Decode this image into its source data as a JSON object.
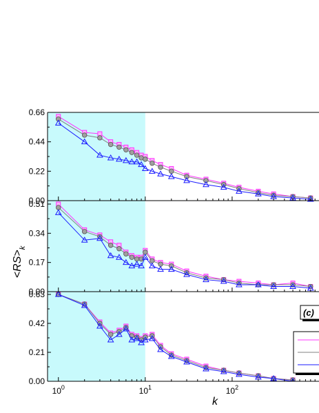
{
  "chart_data": {
    "type": "line",
    "xlabel": "k",
    "ylabel_main": "<RS>",
    "ylabel_sub": "k",
    "x_scale": "log",
    "xlim": [
      0.75,
      1000
    ],
    "x_tick_base": "10",
    "x_ticks": [
      {
        "value": 1,
        "exp": "0"
      },
      {
        "value": 10,
        "exp": "1"
      },
      {
        "value": 100,
        "exp": "2"
      }
    ],
    "highlight_region": {
      "x": [
        1,
        10
      ],
      "color": "#c8fafc"
    },
    "colors": {
      "magenta": "#ff33ff",
      "gray": "#808080",
      "blue": "#1a1aff"
    },
    "panels": [
      {
        "label": "",
        "ylim": [
          0,
          0.66
        ],
        "y_ticks": [
          "0.00",
          "0.22",
          "0.44",
          "0.66"
        ],
        "y_tick_values": [
          0,
          0.22,
          0.44,
          0.66
        ],
        "series": [
          {
            "color": "magenta",
            "marker": "square",
            "x": [
              1,
              2,
              3,
              4,
              5,
              6,
              7,
              8,
              9,
              10,
              12,
              15,
              20,
              30,
              50,
              80,
              120,
              200,
              300,
              500,
              800
            ],
            "y": [
              0.63,
              0.51,
              0.5,
              0.44,
              0.42,
              0.4,
              0.38,
              0.36,
              0.34,
              0.33,
              0.3,
              0.27,
              0.24,
              0.19,
              0.16,
              0.13,
              0.1,
              0.07,
              0.05,
              0.03,
              0.02
            ]
          },
          {
            "color": "gray",
            "marker": "circle",
            "x": [
              1,
              2,
              3,
              4,
              5,
              6,
              7,
              8,
              9,
              10,
              12,
              15,
              20,
              30,
              50,
              80,
              120,
              200,
              300,
              500,
              800
            ],
            "y": [
              0.61,
              0.49,
              0.47,
              0.42,
              0.4,
              0.38,
              0.36,
              0.34,
              0.32,
              0.31,
              0.28,
              0.25,
              0.22,
              0.18,
              0.15,
              0.12,
              0.09,
              0.06,
              0.04,
              0.03,
              0.02
            ]
          },
          {
            "color": "blue",
            "marker": "triangle",
            "x": [
              1,
              2,
              3,
              4,
              5,
              6,
              7,
              8,
              9,
              10,
              12,
              15,
              20,
              30,
              50,
              80,
              120,
              200,
              300,
              500,
              800
            ],
            "y": [
              0.58,
              0.44,
              0.34,
              0.32,
              0.31,
              0.3,
              0.29,
              0.29,
              0.27,
              0.24,
              0.22,
              0.2,
              0.18,
              0.15,
              0.12,
              0.1,
              0.07,
              0.05,
              0.03,
              0.02,
              0.01
            ]
          }
        ]
      },
      {
        "label": "",
        "ylim": [
          0,
          0.53
        ],
        "y_ticks": [
          "0.00",
          "0.17",
          "0.34",
          "0.51"
        ],
        "y_tick_values": [
          0,
          0.17,
          0.34,
          0.51
        ],
        "series": [
          {
            "color": "magenta",
            "marker": "square",
            "x": [
              1,
              2,
              3,
              4,
              5,
              6,
              7,
              8,
              9,
              10,
              12,
              15,
              20,
              30,
              50,
              80,
              120,
              200,
              300,
              500,
              800
            ],
            "y": [
              0.51,
              0.36,
              0.33,
              0.29,
              0.27,
              0.23,
              0.21,
              0.2,
              0.2,
              0.24,
              0.19,
              0.17,
              0.16,
              0.12,
              0.09,
              0.07,
              0.06,
              0.05,
              0.04,
              0.05,
              0.03
            ]
          },
          {
            "color": "gray",
            "marker": "circle",
            "x": [
              1,
              2,
              3,
              4,
              5,
              6,
              7,
              8,
              9,
              10,
              12,
              15,
              20,
              30,
              50,
              80,
              120,
              200,
              300,
              500,
              800
            ],
            "y": [
              0.49,
              0.35,
              0.32,
              0.27,
              0.25,
              0.22,
              0.2,
              0.19,
              0.19,
              0.23,
              0.18,
              0.16,
              0.15,
              0.11,
              0.08,
              0.07,
              0.05,
              0.04,
              0.04,
              0.04,
              0.03
            ]
          },
          {
            "color": "blue",
            "marker": "triangle",
            "x": [
              1,
              2,
              3,
              4,
              5,
              6,
              7,
              8,
              9,
              10,
              12,
              15,
              20,
              30,
              50,
              80,
              120,
              200,
              300,
              500,
              800
            ],
            "y": [
              0.46,
              0.3,
              0.31,
              0.21,
              0.2,
              0.17,
              0.15,
              0.16,
              0.15,
              0.2,
              0.15,
              0.13,
              0.13,
              0.1,
              0.07,
              0.06,
              0.04,
              0.04,
              0.03,
              0.03,
              0.02
            ]
          }
        ]
      },
      {
        "label": "(c)",
        "ylim": [
          0,
          0.65
        ],
        "y_ticks": [
          "0.00",
          "0.21",
          "0.42",
          "0.63"
        ],
        "y_tick_values": [
          0,
          0.21,
          0.42,
          0.63
        ],
        "series": [
          {
            "color": "magenta",
            "marker": "square",
            "x": [
              1,
              2,
              3,
              4,
              5,
              6,
              7,
              8,
              9,
              10,
              12,
              15,
              20,
              30,
              50,
              80,
              120,
              200,
              300,
              500
            ],
            "y": [
              0.63,
              0.56,
              0.43,
              0.35,
              0.37,
              0.4,
              0.34,
              0.33,
              0.31,
              0.33,
              0.34,
              0.26,
              0.2,
              0.16,
              0.11,
              0.08,
              0.06,
              0.04,
              0.02,
              0.01
            ]
          },
          {
            "color": "gray",
            "marker": "circle",
            "x": [
              1,
              2,
              3,
              4,
              5,
              6,
              7,
              8,
              9,
              10,
              12,
              15,
              20,
              30,
              50,
              80,
              120,
              200,
              300,
              500
            ],
            "y": [
              0.63,
              0.56,
              0.42,
              0.34,
              0.36,
              0.39,
              0.33,
              0.32,
              0.3,
              0.32,
              0.33,
              0.25,
              0.19,
              0.15,
              0.1,
              0.08,
              0.06,
              0.04,
              0.02,
              0.01
            ]
          },
          {
            "color": "blue",
            "marker": "triangle",
            "x": [
              1,
              2,
              3,
              4,
              5,
              6,
              7,
              8,
              9,
              10,
              12,
              15,
              20,
              30,
              50,
              80,
              120,
              200,
              300,
              500
            ],
            "y": [
              0.63,
              0.55,
              0.4,
              0.3,
              0.34,
              0.38,
              0.3,
              0.31,
              0.28,
              0.3,
              0.31,
              0.23,
              0.18,
              0.14,
              0.09,
              0.07,
              0.05,
              0.03,
              0.02,
              0.0
            ]
          }
        ]
      }
    ]
  }
}
